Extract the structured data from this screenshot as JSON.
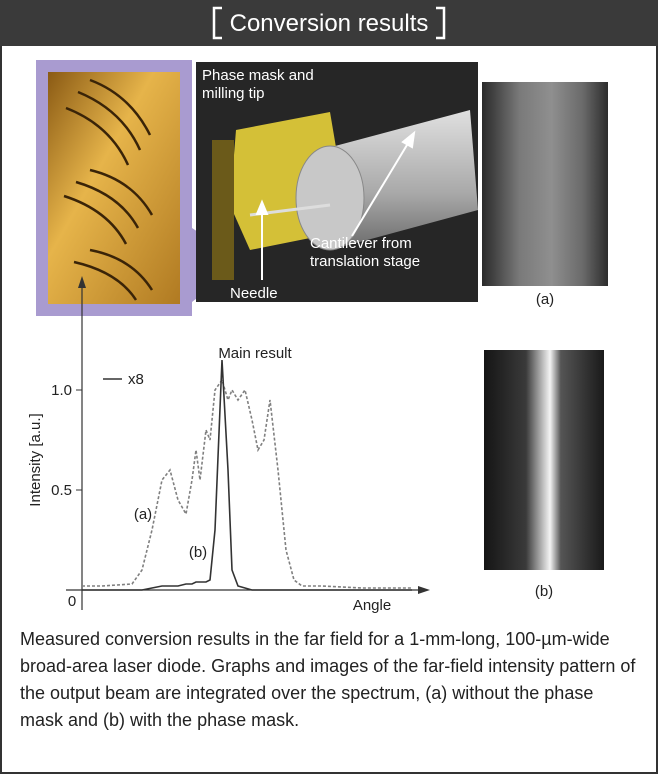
{
  "header": {
    "title": "Conversion results"
  },
  "photo": {
    "labels": [
      "Phase mask and",
      "milling tip",
      "Cantilever from",
      "translation stage",
      "Needle"
    ]
  },
  "images": [
    {
      "label": "(a)"
    },
    {
      "label": "(b)"
    }
  ],
  "chart_data": {
    "type": "line",
    "ylabel": "Intensity [a.u.]",
    "xlabel": "Angle",
    "x": [
      0,
      20,
      50,
      60,
      70,
      80,
      88,
      96,
      104,
      110,
      114,
      118,
      124,
      128,
      133,
      140,
      146,
      150,
      156,
      163,
      170,
      176,
      182,
      188,
      196,
      204,
      212,
      220,
      240,
      280,
      330
    ],
    "xlim": [
      0,
      340
    ],
    "ylim": [
      0,
      1.5
    ],
    "yticks": [
      0,
      0.5,
      {
        "value": 1,
        "label": "1.0"
      }
    ],
    "series": [
      {
        "name": "(a)",
        "color": "#808080",
        "line_style": "dashed",
        "values": [
          0.02,
          0.02,
          0.03,
          0.1,
          0.3,
          0.55,
          0.6,
          0.45,
          0.38,
          0.55,
          0.7,
          0.55,
          0.8,
          0.75,
          1.0,
          1.05,
          0.95,
          1.0,
          0.95,
          1.0,
          0.85,
          0.7,
          0.75,
          0.95,
          0.6,
          0.2,
          0.05,
          0.02,
          0.02,
          0.01,
          0.01
        ]
      },
      {
        "name": "(b)",
        "color": "#333333",
        "line_style": "solid",
        "values": [
          0,
          0,
          0,
          0,
          0.01,
          0.02,
          0.02,
          0.02,
          0.03,
          0.03,
          0.04,
          0.04,
          0.04,
          0.05,
          0.3,
          1.15,
          0.6,
          0.1,
          0.02,
          0.01,
          0,
          0,
          0,
          0,
          0,
          0,
          0,
          0,
          0,
          0,
          0
        ]
      }
    ],
    "annotations": [
      "Main result",
      "x8"
    ]
  },
  "caption": "Measured conversion results in the far field for a 1-mm-long, 100-µm-wide broad-area laser diode. Graphs and images of the far-field intensity pattern of the output beam are integrated over the spectrum, (a) without the phase mask and (b) with the phase mask."
}
